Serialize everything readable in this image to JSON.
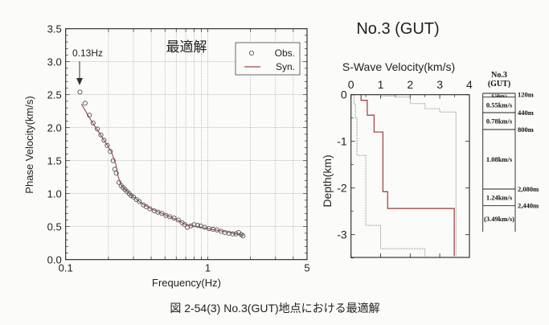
{
  "title": "No.3 (GUT)",
  "caption": "図 2-54(3)  No.3(GUT)地点における最適解",
  "colors": {
    "syn": "#a04a4a",
    "obs": "#555555",
    "best": "#a04a4a",
    "bounds": "#8a8a8a"
  },
  "chart_data": [
    {
      "type": "scatter",
      "title": "最適解",
      "xlabel": "Frequency(Hz)",
      "ylabel": "Phase Velocity(km/s)",
      "xscale": "log",
      "xlim": [
        0.1,
        5
      ],
      "ylim": [
        0,
        3.5
      ],
      "xticks": [
        "0.1",
        "1",
        "5"
      ],
      "xtick_values": [
        0.1,
        1,
        5
      ],
      "yticks": [
        "0.0",
        "0.5",
        "1.0",
        "1.5",
        "2.0",
        "2.5",
        "3.0",
        "3.5"
      ],
      "grid": true,
      "legend": {
        "position": "top-right",
        "entries": [
          "Obs.",
          "Syn."
        ]
      },
      "annotation": {
        "text": "0.13Hz",
        "x": 0.13
      },
      "series": [
        {
          "name": "Obs.",
          "marker": "circle",
          "points": [
            [
              0.126,
              2.54
            ],
            [
              0.137,
              2.37
            ],
            [
              0.147,
              2.19
            ],
            [
              0.156,
              2.07
            ],
            [
              0.167,
              1.98
            ],
            [
              0.177,
              1.89
            ],
            [
              0.186,
              1.81
            ],
            [
              0.196,
              1.73
            ],
            [
              0.206,
              1.64
            ],
            [
              0.216,
              1.5
            ],
            [
              0.222,
              1.37
            ],
            [
              0.227,
              1.31
            ],
            [
              0.237,
              1.17
            ],
            [
              0.246,
              1.12
            ],
            [
              0.254,
              1.09
            ],
            [
              0.262,
              1.06
            ],
            [
              0.271,
              1.03
            ],
            [
              0.28,
              1.0
            ],
            [
              0.289,
              0.97
            ],
            [
              0.3,
              0.95
            ],
            [
              0.315,
              0.91
            ],
            [
              0.33,
              0.88
            ],
            [
              0.352,
              0.83
            ],
            [
              0.37,
              0.8
            ],
            [
              0.392,
              0.77
            ],
            [
              0.42,
              0.74
            ],
            [
              0.446,
              0.72
            ],
            [
              0.475,
              0.7
            ],
            [
              0.508,
              0.67
            ],
            [
              0.54,
              0.65
            ],
            [
              0.579,
              0.63
            ],
            [
              0.62,
              0.6
            ],
            [
              0.659,
              0.56
            ],
            [
              0.69,
              0.53
            ],
            [
              0.719,
              0.49
            ],
            [
              0.76,
              0.51
            ],
            [
              0.801,
              0.53
            ],
            [
              0.85,
              0.52
            ],
            [
              0.893,
              0.51
            ],
            [
              0.95,
              0.49
            ],
            [
              1.02,
              0.47
            ],
            [
              1.09,
              0.46
            ],
            [
              1.16,
              0.45
            ],
            [
              1.24,
              0.43
            ],
            [
              1.32,
              0.41
            ],
            [
              1.41,
              0.4
            ],
            [
              1.5,
              0.39
            ],
            [
              1.58,
              0.39
            ],
            [
              1.65,
              0.41
            ],
            [
              1.72,
              0.38
            ],
            [
              1.77,
              0.36
            ]
          ]
        },
        {
          "name": "Syn.",
          "marker": "line",
          "points": [
            [
              0.129,
              2.36
            ],
            [
              0.15,
              2.12
            ],
            [
              0.18,
              1.86
            ],
            [
              0.21,
              1.63
            ],
            [
              0.225,
              1.45
            ],
            [
              0.235,
              1.25
            ],
            [
              0.245,
              1.13
            ],
            [
              0.27,
              1.04
            ],
            [
              0.3,
              0.95
            ],
            [
              0.35,
              0.84
            ],
            [
              0.4,
              0.77
            ],
            [
              0.5,
              0.68
            ],
            [
              0.6,
              0.61
            ],
            [
              0.7,
              0.53
            ],
            [
              0.8,
              0.51
            ],
            [
              1.0,
              0.47
            ],
            [
              1.2,
              0.44
            ],
            [
              1.5,
              0.4
            ],
            [
              1.77,
              0.37
            ]
          ]
        }
      ]
    },
    {
      "type": "line",
      "title": "S-Wave Velocity(km/s)",
      "ylabel": "Depth(km)",
      "xlim": [
        0,
        4
      ],
      "ylim": [
        -3.46,
        0
      ],
      "xticks": [
        "0",
        "1",
        "2",
        "3",
        "4"
      ],
      "yticks": [
        "0",
        "-1",
        "-2",
        "-3"
      ],
      "series": [
        {
          "name": "best",
          "style": "solid",
          "steps": [
            [
              0.34,
              0,
              -0.12
            ],
            [
              0.55,
              -0.12,
              -0.44
            ],
            [
              0.78,
              -0.44,
              -0.8
            ],
            [
              1.08,
              -0.8,
              -2.08
            ],
            [
              1.24,
              -2.08,
              -2.44
            ],
            [
              3.49,
              -2.44,
              -3.46
            ]
          ]
        },
        {
          "name": "upper",
          "style": "dotted",
          "steps": [
            [
              1.0,
              0,
              -0.03
            ],
            [
              1.5,
              -0.03,
              -0.05
            ],
            [
              2.0,
              -0.05,
              -0.19
            ],
            [
              2.5,
              -0.19,
              -0.3
            ],
            [
              3.0,
              -0.3,
              -0.37
            ],
            [
              3.55,
              -0.37,
              -3.46
            ]
          ]
        },
        {
          "name": "lower",
          "style": "dotted",
          "steps": [
            [
              0.1,
              0,
              -0.2
            ],
            [
              0.15,
              -0.2,
              -0.5
            ],
            [
              0.2,
              -0.5,
              -1.3
            ],
            [
              0.5,
              -1.3,
              -2.8
            ],
            [
              1.0,
              -2.8,
              -3.3
            ],
            [
              2.5,
              -3.3,
              -3.46
            ]
          ]
        }
      ]
    }
  ],
  "profile": {
    "header": [
      "No.3",
      "(GUT)"
    ],
    "layers": [
      {
        "velocity": "0.34km/s",
        "bottom": "120m"
      },
      {
        "velocity": "0.55km/s",
        "bottom": "440m"
      },
      {
        "velocity": "0.78km/s",
        "bottom": "800m"
      },
      {
        "velocity": "1.08km/s",
        "bottom": "2,080m"
      },
      {
        "velocity": "1.24km/s",
        "bottom": "2,440m"
      },
      {
        "velocity": "(3.49km/s)",
        "bottom": ""
      }
    ]
  }
}
